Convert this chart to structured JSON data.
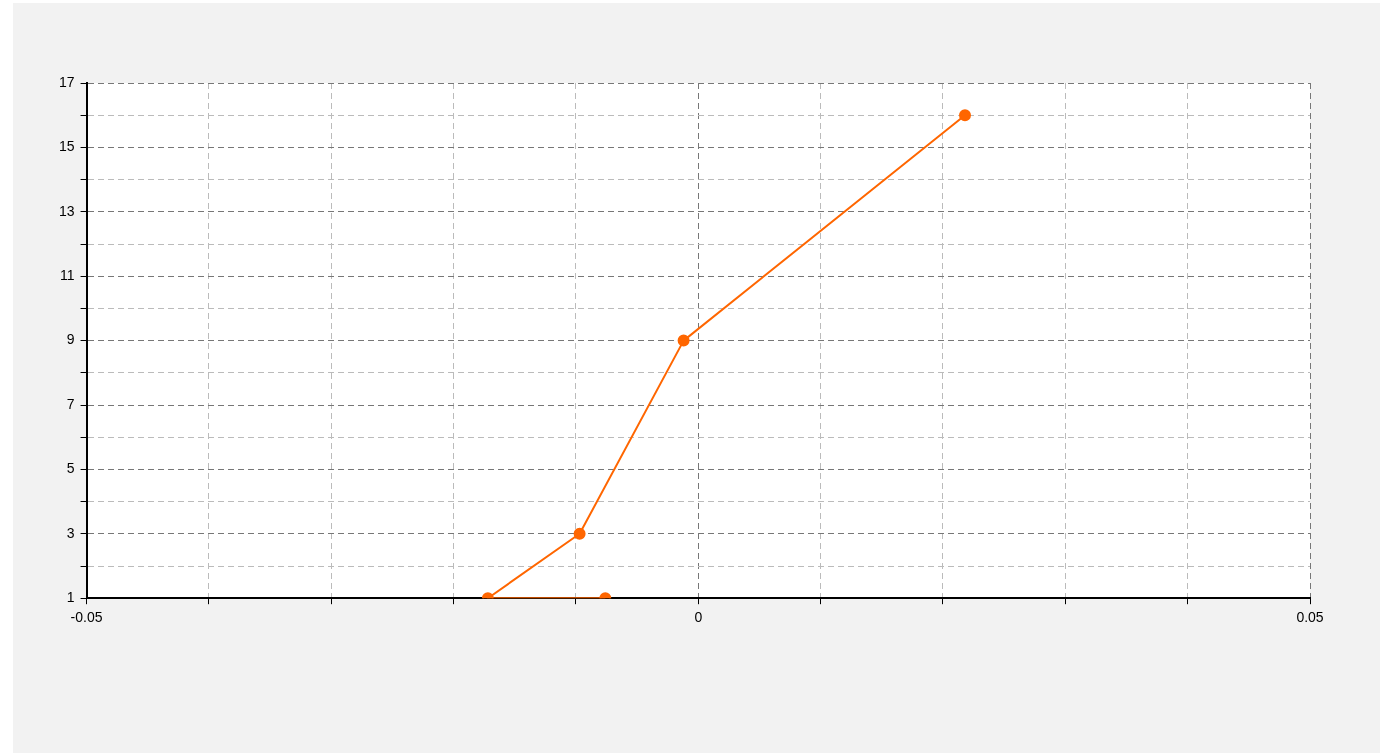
{
  "chart_data": {
    "type": "line",
    "x": [
      -0.0076,
      -0.0172,
      -0.0097,
      -0.0012,
      0.0218
    ],
    "series": [
      {
        "color": "#ff6600",
        "values": [
          1,
          1,
          3,
          9,
          16
        ]
      }
    ],
    "xlim": [
      -0.05,
      0.05
    ],
    "xticks": [
      -0.05,
      {
        "value": -0.04,
        "label": null
      },
      {
        "value": -0.03,
        "label": null
      },
      {
        "value": -0.02,
        "label": null
      },
      {
        "value": -0.01,
        "label": null
      },
      0,
      {
        "value": 0.01,
        "label": null
      },
      {
        "value": 0.02,
        "label": null
      },
      {
        "value": 0.03,
        "label": null
      },
      {
        "value": 0.04,
        "label": null
      },
      0.05
    ],
    "ylim": [
      1,
      17
    ],
    "yticks": [
      1,
      {
        "value": 2,
        "label": null
      },
      3,
      {
        "value": 4,
        "label": null
      },
      5,
      {
        "value": 6,
        "label": null
      },
      7,
      {
        "value": 8,
        "label": null
      },
      9,
      {
        "value": 10,
        "label": null
      },
      11,
      {
        "value": 12,
        "label": null
      },
      13,
      {
        "value": 14,
        "label": null
      },
      15,
      {
        "value": 16,
        "label": null
      },
      17
    ],
    "grid": true,
    "legend": false,
    "marker": "circle",
    "line_style": "solid"
  }
}
